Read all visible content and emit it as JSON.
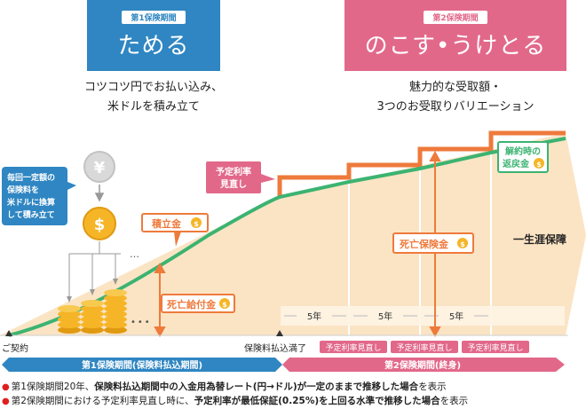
{
  "phase1": {
    "tag": "第1保険期間",
    "title": "ためる",
    "desc_line1": "コツコツ円でお払い込み、",
    "desc_line2": "米ドルを積み立て"
  },
  "phase2": {
    "tag": "第2保険期間",
    "title": "のこす•うけとる",
    "desc_line1": "魅力的な受取額・",
    "desc_line2": "3つのお受取りバリエーション"
  },
  "callout": {
    "line1": "毎回一定額の",
    "line2": "保険料を",
    "line3": "米ドルに換算",
    "line4": "して積み立て"
  },
  "labels": {
    "tsumitatekin": "積立金",
    "shibo_kyufukin": "死亡給付金",
    "yotei_riritsu_1": "予定利率",
    "yotei_riritsu_2": "見直し",
    "shibo_hokenkin": "死亡保険金",
    "kaiyaku_1": "解約時の",
    "kaiyaku_2": "返戻金",
    "lifetime": "一生涯保障",
    "dots": "•••",
    "ellipsis": "…",
    "five_years": "5年",
    "contract": "ご契約",
    "premium_end": "保険料払込満了",
    "review": "予定利率見直し",
    "period1": "第1保険期間(保険料払込期間)",
    "period2": "第2保険期間(終身)",
    "currency_yen": "¥",
    "currency_usd": "$"
  },
  "notes": {
    "n1_a": "第1保険期間20年、",
    "n1_b": "保険料払込期間中の入金用為替レート(円→ドル)が一定のままで推移した場合",
    "n1_c": "を表示",
    "n2_a": "第2保険期間における予定利率見直し時に、",
    "n2_b": "予定利率が最低保証(0.25%)を上回る水準で推移した場合",
    "n2_c": "を表示"
  },
  "colors": {
    "blue": "#2f86c2",
    "pink": "#e2688a",
    "orange": "#ee7a3c",
    "green": "#3cb371",
    "peach": "#fbe4c4",
    "gold": "#f5b527"
  }
}
